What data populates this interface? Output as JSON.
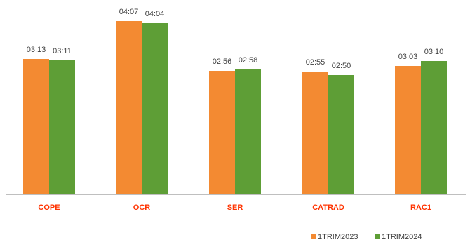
{
  "chart_data": {
    "type": "bar",
    "title": "",
    "xlabel": "",
    "ylabel": "",
    "categories": [
      "COPE",
      "OCR",
      "SER",
      "CATRAD",
      "RAC1"
    ],
    "series": [
      {
        "name": "1TRIM2023",
        "color": "#F38A32",
        "values": [
          193,
          247,
          176,
          175,
          183
        ],
        "labels": [
          "03:13",
          "04:07",
          "02:56",
          "02:55",
          "03:03"
        ]
      },
      {
        "name": "1TRIM2024",
        "color": "#5E9E36",
        "values": [
          191,
          244,
          178,
          170,
          190
        ],
        "labels": [
          "03:11",
          "04:04",
          "02:58",
          "02:50",
          "03:10"
        ]
      }
    ],
    "value_unit": "seconds (shown as mm:ss)",
    "ylim": [
      0,
      260
    ],
    "grid": false,
    "y_axis_visible": false,
    "legend_position": "bottom-right",
    "category_label_color": "#FF3300"
  }
}
